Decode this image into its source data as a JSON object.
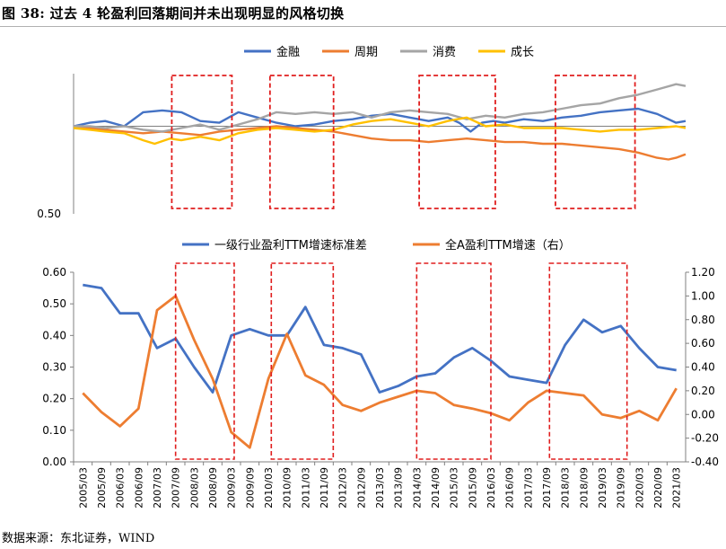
{
  "title": "图  38:  过去 4 轮盈利回落期间并未出现明显的风格切换",
  "source": "数据来源：东北证券，WIND",
  "colors": {
    "blue": "#4472C4",
    "orange": "#ED7D31",
    "gray": "#A5A5A5",
    "gold": "#FFC000",
    "red": "#E01E1E",
    "axis": "#808080"
  },
  "chart_data": [
    {
      "type": "line",
      "title": "",
      "xlabel": "",
      "ylabel": "",
      "x_range": [
        2005.17,
        2021.25
      ],
      "y_tick_labels": [
        {
          "value": 0.5,
          "label": "0.50"
        }
      ],
      "legend_position": "top",
      "grid": false,
      "series": [
        {
          "name": "金融",
          "color_key": "blue",
          "points": [
            [
              2005.17,
              1.0
            ],
            [
              2005.6,
              1.02
            ],
            [
              2006.0,
              1.03
            ],
            [
              2006.5,
              1.0
            ],
            [
              2007.0,
              1.08
            ],
            [
              2007.5,
              1.09
            ],
            [
              2008.0,
              1.08
            ],
            [
              2008.5,
              1.03
            ],
            [
              2009.0,
              1.02
            ],
            [
              2009.5,
              1.08
            ],
            [
              2010.0,
              1.05
            ],
            [
              2010.5,
              1.02
            ],
            [
              2011.0,
              1.0
            ],
            [
              2011.5,
              1.01
            ],
            [
              2012.0,
              1.03
            ],
            [
              2012.5,
              1.04
            ],
            [
              2013.0,
              1.06
            ],
            [
              2013.5,
              1.07
            ],
            [
              2014.0,
              1.05
            ],
            [
              2014.5,
              1.03
            ],
            [
              2015.0,
              1.05
            ],
            [
              2015.3,
              1.02
            ],
            [
              2015.6,
              0.97
            ],
            [
              2015.9,
              1.02
            ],
            [
              2016.2,
              1.03
            ],
            [
              2016.5,
              1.02
            ],
            [
              2017.0,
              1.04
            ],
            [
              2017.5,
              1.03
            ],
            [
              2018.0,
              1.05
            ],
            [
              2018.5,
              1.06
            ],
            [
              2019.0,
              1.08
            ],
            [
              2019.5,
              1.09
            ],
            [
              2020.0,
              1.1
            ],
            [
              2020.5,
              1.07
            ],
            [
              2021.0,
              1.02
            ],
            [
              2021.25,
              1.03
            ]
          ]
        },
        {
          "name": "周期",
          "color_key": "orange",
          "points": [
            [
              2005.17,
              1.0
            ],
            [
              2005.6,
              0.99
            ],
            [
              2006.0,
              0.98
            ],
            [
              2006.5,
              0.97
            ],
            [
              2007.0,
              0.96
            ],
            [
              2007.5,
              0.97
            ],
            [
              2008.0,
              0.96
            ],
            [
              2008.5,
              0.95
            ],
            [
              2009.0,
              0.97
            ],
            [
              2009.5,
              0.98
            ],
            [
              2010.0,
              0.99
            ],
            [
              2010.5,
              1.0
            ],
            [
              2011.0,
              0.99
            ],
            [
              2011.5,
              0.98
            ],
            [
              2012.0,
              0.97
            ],
            [
              2012.5,
              0.95
            ],
            [
              2013.0,
              0.93
            ],
            [
              2013.5,
              0.92
            ],
            [
              2014.0,
              0.92
            ],
            [
              2014.5,
              0.91
            ],
            [
              2015.0,
              0.92
            ],
            [
              2015.5,
              0.93
            ],
            [
              2016.0,
              0.92
            ],
            [
              2016.5,
              0.91
            ],
            [
              2017.0,
              0.91
            ],
            [
              2017.5,
              0.9
            ],
            [
              2018.0,
              0.9
            ],
            [
              2018.5,
              0.89
            ],
            [
              2019.0,
              0.88
            ],
            [
              2019.5,
              0.87
            ],
            [
              2020.0,
              0.85
            ],
            [
              2020.5,
              0.82
            ],
            [
              2020.8,
              0.81
            ],
            [
              2021.0,
              0.82
            ],
            [
              2021.25,
              0.84
            ]
          ]
        },
        {
          "name": "消费",
          "color_key": "gray",
          "points": [
            [
              2005.17,
              1.0
            ],
            [
              2005.6,
              1.0
            ],
            [
              2006.0,
              0.99
            ],
            [
              2006.5,
              1.0
            ],
            [
              2007.0,
              0.98
            ],
            [
              2007.5,
              0.97
            ],
            [
              2008.0,
              0.99
            ],
            [
              2008.5,
              1.01
            ],
            [
              2009.0,
              0.98
            ],
            [
              2009.5,
              1.01
            ],
            [
              2010.0,
              1.04
            ],
            [
              2010.5,
              1.08
            ],
            [
              2011.0,
              1.07
            ],
            [
              2011.5,
              1.08
            ],
            [
              2012.0,
              1.07
            ],
            [
              2012.5,
              1.08
            ],
            [
              2013.0,
              1.05
            ],
            [
              2013.5,
              1.08
            ],
            [
              2014.0,
              1.09
            ],
            [
              2014.5,
              1.08
            ],
            [
              2015.0,
              1.07
            ],
            [
              2015.5,
              1.04
            ],
            [
              2016.0,
              1.06
            ],
            [
              2016.5,
              1.05
            ],
            [
              2017.0,
              1.07
            ],
            [
              2017.5,
              1.08
            ],
            [
              2018.0,
              1.1
            ],
            [
              2018.5,
              1.12
            ],
            [
              2019.0,
              1.13
            ],
            [
              2019.5,
              1.16
            ],
            [
              2020.0,
              1.18
            ],
            [
              2020.5,
              1.21
            ],
            [
              2021.0,
              1.24
            ],
            [
              2021.25,
              1.23
            ]
          ]
        },
        {
          "name": "成长",
          "color_key": "gold",
          "points": [
            [
              2005.17,
              0.99
            ],
            [
              2005.6,
              0.98
            ],
            [
              2006.0,
              0.97
            ],
            [
              2006.5,
              0.96
            ],
            [
              2007.0,
              0.92
            ],
            [
              2007.3,
              0.9
            ],
            [
              2007.7,
              0.93
            ],
            [
              2008.0,
              0.92
            ],
            [
              2008.5,
              0.94
            ],
            [
              2009.0,
              0.92
            ],
            [
              2009.5,
              0.96
            ],
            [
              2010.0,
              0.98
            ],
            [
              2010.5,
              0.99
            ],
            [
              2011.0,
              0.98
            ],
            [
              2011.5,
              0.97
            ],
            [
              2012.0,
              0.98
            ],
            [
              2012.5,
              1.01
            ],
            [
              2013.0,
              1.03
            ],
            [
              2013.5,
              1.04
            ],
            [
              2014.0,
              1.02
            ],
            [
              2014.5,
              1.0
            ],
            [
              2015.0,
              1.03
            ],
            [
              2015.5,
              1.05
            ],
            [
              2016.0,
              1.0
            ],
            [
              2016.5,
              1.01
            ],
            [
              2017.0,
              0.99
            ],
            [
              2017.5,
              0.99
            ],
            [
              2018.0,
              0.99
            ],
            [
              2018.5,
              0.98
            ],
            [
              2019.0,
              0.97
            ],
            [
              2019.5,
              0.98
            ],
            [
              2020.0,
              0.98
            ],
            [
              2020.5,
              0.99
            ],
            [
              2021.0,
              1.0
            ],
            [
              2021.25,
              0.99
            ]
          ]
        }
      ]
    },
    {
      "type": "line",
      "title": "",
      "xlabel": "",
      "ylabel": "",
      "legend_position": "top",
      "grid": false,
      "ylim_left": [
        0,
        0.6
      ],
      "ylim_right": [
        -0.4,
        1.2
      ],
      "y_left_ticks": [
        "0.00",
        "0.10",
        "0.20",
        "0.30",
        "0.40",
        "0.50",
        "0.60"
      ],
      "y_right_ticks": [
        "-0.40",
        "-0.20",
        "0.00",
        "0.20",
        "0.40",
        "0.60",
        "0.80",
        "1.00",
        "1.20"
      ],
      "x_ticks": [
        "2005/03",
        "2005/09",
        "2006/03",
        "2006/09",
        "2007/03",
        "2007/09",
        "2008/03",
        "2008/09",
        "2009/03",
        "2009/09",
        "2010/03",
        "2010/09",
        "2011/03",
        "2011/09",
        "2012/03",
        "2012/09",
        "2013/03",
        "2013/09",
        "2014/03",
        "2014/09",
        "2015/03",
        "2015/09",
        "2016/03",
        "2016/09",
        "2017/03",
        "2017/09",
        "2018/03",
        "2018/09",
        "2019/03",
        "2019/09",
        "2020/03",
        "2020/09",
        "2021/03"
      ],
      "series": [
        {
          "name": "一级行业盈利TTM增速标准差",
          "color_key": "blue",
          "axis": "left",
          "values": [
            0.56,
            0.55,
            0.47,
            0.47,
            0.36,
            0.39,
            0.3,
            0.22,
            0.4,
            0.42,
            0.4,
            0.4,
            0.49,
            0.37,
            0.36,
            0.34,
            0.22,
            0.24,
            0.27,
            0.28,
            0.33,
            0.36,
            0.32,
            0.27,
            0.26,
            0.25,
            0.37,
            0.45,
            0.41,
            0.43,
            0.36,
            0.3,
            0.29
          ]
        },
        {
          "name": "全A盈利TTM增速（右）",
          "color_key": "orange",
          "axis": "right",
          "values": [
            0.18,
            0.02,
            -0.1,
            0.05,
            0.88,
            1.0,
            0.63,
            0.3,
            -0.15,
            -0.28,
            0.3,
            0.68,
            0.33,
            0.25,
            0.08,
            0.03,
            0.1,
            0.15,
            0.2,
            0.18,
            0.08,
            0.05,
            0.01,
            -0.05,
            0.1,
            0.2,
            0.18,
            0.16,
            0.0,
            -0.03,
            0.03,
            -0.05,
            0.22
          ]
        }
      ]
    }
  ],
  "shaded_periods": [
    {
      "start": 2007.75,
      "end": 2009.33
    },
    {
      "start": 2010.33,
      "end": 2012.0
    },
    {
      "start": 2014.25,
      "end": 2016.25
    },
    {
      "start": 2017.83,
      "end": 2019.92
    }
  ]
}
